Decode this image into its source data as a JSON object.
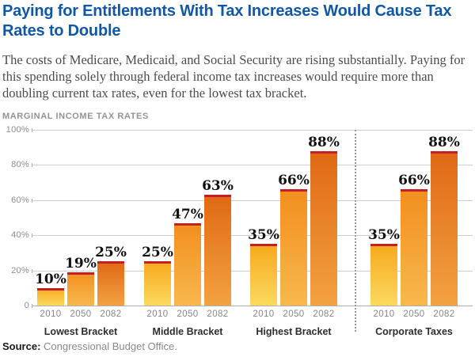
{
  "header": {
    "title": "Paying for Entitlements With Tax Increases Would Cause Tax Rates to Double",
    "subtitle": "The costs of Medicare, Medicaid, and Social Security are rising substantially. Paying for this spending solely through federal income tax increases would require more than doubling current tax rates, even for the lowest tax bracket."
  },
  "chart_data": {
    "type": "bar",
    "title": "MARGINAL INCOME TAX RATES",
    "categories": [
      "Lowest Bracket",
      "Middle Bracket",
      "Highest Bracket",
      "Corporate Taxes"
    ],
    "series": [
      {
        "name": "2010",
        "values": [
          10,
          25,
          35,
          35
        ]
      },
      {
        "name": "2050",
        "values": [
          19,
          47,
          66,
          66
        ]
      },
      {
        "name": "2082",
        "values": [
          25,
          63,
          88,
          88
        ]
      }
    ],
    "value_suffix": "%",
    "ylim": [
      0,
      100
    ],
    "ytick_labels": [
      "100%",
      "80%",
      "60%",
      "40%",
      "20%",
      "0"
    ],
    "grid": true,
    "legend_position": "none",
    "divider_before_category_index": 3,
    "colors": {
      "title_blue": "#1057a5",
      "bar_cap_red": "#c32026",
      "bar_2010_top": "#f6a91c",
      "bar_2010_bottom": "#fcd95f",
      "bar_2050_top": "#f28e1e",
      "bar_2050_bottom": "#f8b84d",
      "bar_2082_top": "#e06814",
      "bar_2082_bottom": "#f2a242",
      "gridline": "#cfcfcf"
    }
  },
  "source": {
    "label": "Source:",
    "text": "Congressional Budget Office."
  }
}
